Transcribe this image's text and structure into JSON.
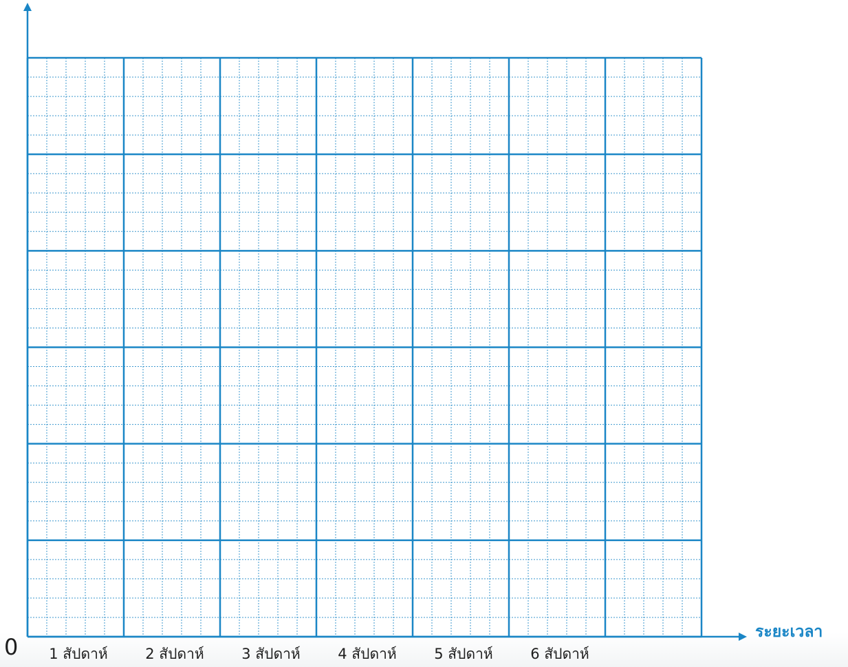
{
  "chart_data": {
    "type": "line",
    "title": "",
    "ylabel": "",
    "xlabel": "ระยะเวลา",
    "origin_label": "0",
    "categories": [
      "1 สัปดาห์",
      "2 สัปดาห์",
      "3 สัปดาห์",
      "4 สัปดาห์",
      "5 สัปดาห์",
      "6 สัปดาห์"
    ],
    "series": [],
    "grid": true,
    "major_columns": 7,
    "major_rows": 6,
    "minor_per_major": 5,
    "colors": {
      "axis": "#1a86c6",
      "major_grid": "#1a86c6",
      "minor_grid": "#1a86c6",
      "text": "#1e1e1e"
    }
  }
}
